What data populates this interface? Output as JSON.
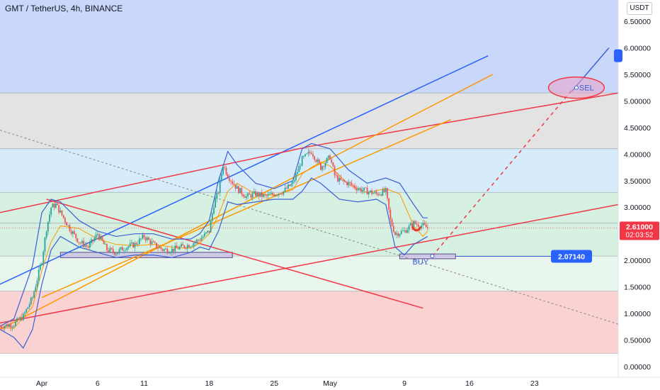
{
  "header": {
    "title": "GMT / TetherUS, 4h, BINANCE",
    "currency_label": "USDT"
  },
  "price_axis": {
    "ticks": [
      "6.50000",
      "6.00000",
      "5.50000",
      "5.00000",
      "4.50000",
      "4.00000",
      "3.50000",
      "3.00000",
      "2.50000",
      "2.00000",
      "1.50000",
      "1.00000",
      "0.50000",
      "0.00000"
    ],
    "values": [
      6.5,
      6.0,
      5.5,
      5.0,
      4.5,
      4.0,
      3.5,
      3.0,
      2.5,
      2.0,
      1.5,
      1.0,
      0.5,
      0.0
    ],
    "current_price_label": "2.61000",
    "countdown_label": "02:03:52",
    "current_price": 2.61,
    "target_price_label": "2.07140",
    "target_price": 2.0714
  },
  "time_axis": {
    "labels": [
      "Apr",
      "6",
      "11",
      "18",
      "25",
      "May",
      "9",
      "16",
      "23"
    ],
    "days": [
      0,
      6,
      11,
      18,
      25,
      31,
      39,
      46,
      53
    ]
  },
  "annotations": {
    "sell_label": "SEL",
    "buy_label": "BUY"
  },
  "colors": {
    "blue_line": "#2962ff",
    "red_line": "#f23645",
    "orange_line": "#ff9800",
    "band_line": "#3a5fd9",
    "candle": "#26a69a",
    "zone_blue": "#c9d7fb",
    "zone_gray": "#e3e3e3",
    "zone_lightblue": "#d6ecfa",
    "zone_green": "#d6f0e1",
    "zone_lightgreen": "#e9f6ed",
    "zone_red": "#fbd2d2",
    "price_tag": "#f23645",
    "target_tag": "#2962ff"
  },
  "chart_data": {
    "type": "candlestick",
    "title": "GMT / TetherUS, 4h, BINANCE",
    "y_unit": "USDT",
    "ylim": [
      -0.2,
      6.9
    ],
    "xlim_days": [
      -4.5,
      62
    ],
    "zones": [
      {
        "from": 5.15,
        "to": 6.9,
        "color": "zone_blue"
      },
      {
        "from": 4.1,
        "to": 5.15,
        "color": "zone_gray"
      },
      {
        "from": 3.28,
        "to": 4.1,
        "color": "zone_lightblue"
      },
      {
        "from": 2.08,
        "to": 3.28,
        "color": "zone_green"
      },
      {
        "from": 1.42,
        "to": 2.08,
        "color": "zone_lightgreen"
      },
      {
        "from": 0.25,
        "to": 1.42,
        "color": "zone_red"
      }
    ],
    "horizontal_levels": [
      5.15,
      4.1,
      3.28,
      2.7,
      2.08,
      1.42,
      0.25
    ],
    "price_path": [
      [
        -4.5,
        0.76
      ],
      [
        -3,
        0.8
      ],
      [
        -2,
        0.95
      ],
      [
        -1,
        1.3
      ],
      [
        0,
        2.0
      ],
      [
        0.5,
        2.6
      ],
      [
        1,
        3.0
      ],
      [
        1.5,
        3.05
      ],
      [
        2,
        2.9
      ],
      [
        3,
        2.6
      ],
      [
        4,
        2.35
      ],
      [
        5,
        2.25
      ],
      [
        6,
        2.5
      ],
      [
        7,
        2.2
      ],
      [
        8,
        2.15
      ],
      [
        9,
        2.25
      ],
      [
        10,
        2.3
      ],
      [
        11,
        2.45
      ],
      [
        12,
        2.3
      ],
      [
        13,
        2.2
      ],
      [
        14,
        2.2
      ],
      [
        15,
        2.25
      ],
      [
        16,
        2.3
      ],
      [
        17,
        2.4
      ],
      [
        18,
        2.55
      ],
      [
        18.5,
        3.05
      ],
      [
        19,
        3.3
      ],
      [
        19.5,
        3.8
      ],
      [
        20,
        3.6
      ],
      [
        21,
        3.35
      ],
      [
        22,
        3.2
      ],
      [
        23,
        3.25
      ],
      [
        24,
        3.2
      ],
      [
        25,
        3.25
      ],
      [
        26,
        3.3
      ],
      [
        27,
        3.45
      ],
      [
        28,
        3.9
      ],
      [
        29,
        4.05
      ],
      [
        30,
        3.75
      ],
      [
        31,
        3.95
      ],
      [
        31.5,
        3.6
      ],
      [
        32,
        3.5
      ],
      [
        33,
        3.45
      ],
      [
        34,
        3.35
      ],
      [
        35,
        3.3
      ],
      [
        36,
        3.25
      ],
      [
        37,
        3.3
      ],
      [
        37.5,
        2.75
      ],
      [
        38,
        2.5
      ],
      [
        39,
        2.55
      ],
      [
        40,
        2.7
      ],
      [
        41,
        2.65
      ],
      [
        41.5,
        2.61
      ]
    ],
    "bollinger_upper": [
      [
        -4.5,
        0.76
      ],
      [
        -3,
        0.9
      ],
      [
        -1,
        1.9
      ],
      [
        0,
        2.9
      ],
      [
        1,
        3.15
      ],
      [
        2,
        3.1
      ],
      [
        4,
        2.75
      ],
      [
        6,
        2.55
      ],
      [
        8,
        2.45
      ],
      [
        10,
        2.5
      ],
      [
        12,
        2.5
      ],
      [
        14,
        2.4
      ],
      [
        16,
        2.4
      ],
      [
        17,
        2.5
      ],
      [
        18,
        2.75
      ],
      [
        19,
        3.5
      ],
      [
        20,
        4.05
      ],
      [
        21,
        3.8
      ],
      [
        23,
        3.45
      ],
      [
        25,
        3.35
      ],
      [
        27,
        3.5
      ],
      [
        28,
        4.1
      ],
      [
        29,
        4.2
      ],
      [
        30,
        4.15
      ],
      [
        31,
        4.1
      ],
      [
        32,
        3.9
      ],
      [
        33,
        3.7
      ],
      [
        35,
        3.45
      ],
      [
        37,
        3.55
      ],
      [
        38.5,
        3.45
      ],
      [
        40,
        3.05
      ],
      [
        41,
        2.8
      ],
      [
        41.5,
        2.8
      ]
    ],
    "bollinger_lower": [
      [
        -4.5,
        0.7
      ],
      [
        -3,
        0.55
      ],
      [
        -2,
        0.35
      ],
      [
        -1,
        0.7
      ],
      [
        0,
        1.55
      ],
      [
        1,
        2.2
      ],
      [
        2,
        2.45
      ],
      [
        4,
        2.25
      ],
      [
        6,
        2.15
      ],
      [
        8,
        2.05
      ],
      [
        10,
        2.1
      ],
      [
        12,
        2.1
      ],
      [
        14,
        2.05
      ],
      [
        16,
        2.15
      ],
      [
        17,
        2.25
      ],
      [
        18,
        2.2
      ],
      [
        19,
        2.55
      ],
      [
        20,
        3.1
      ],
      [
        21,
        3.05
      ],
      [
        23,
        3.1
      ],
      [
        25,
        3.15
      ],
      [
        27,
        3.15
      ],
      [
        28,
        3.3
      ],
      [
        29,
        3.55
      ],
      [
        30,
        3.45
      ],
      [
        31,
        3.3
      ],
      [
        32,
        3.15
      ],
      [
        34,
        3.1
      ],
      [
        36,
        3.15
      ],
      [
        37,
        3.05
      ],
      [
        38,
        2.25
      ],
      [
        39,
        2.1
      ],
      [
        40,
        2.3
      ],
      [
        41,
        2.4
      ],
      [
        41.5,
        2.45
      ]
    ],
    "trendlines": [
      {
        "color": "blue_line",
        "from": [
          -4.5,
          1.55
        ],
        "to": [
          48,
          5.85
        ]
      },
      {
        "color": "red_line",
        "from": [
          -4.5,
          2.9
        ],
        "to": [
          29,
          4.15
        ]
      },
      {
        "color": "red_line",
        "from": [
          29,
          4.15
        ],
        "to": [
          62,
          5.15
        ]
      },
      {
        "color": "red_line",
        "from": [
          -4.5,
          0.82
        ],
        "to": [
          62,
          3.05
        ]
      },
      {
        "color": "red_line",
        "from": [
          0.5,
          3.15
        ],
        "to": [
          41,
          1.1
        ]
      },
      {
        "color": "orange_line",
        "from": [
          -4.5,
          0.7
        ],
        "to": [
          48.5,
          5.5
        ]
      },
      {
        "color": "orange_line",
        "from": [
          0,
          1.3
        ],
        "to": [
          44,
          4.65
        ]
      },
      {
        "color": "band_line",
        "from": [
          57,
          5.18
        ],
        "to": [
          61,
          6.0
        ]
      }
    ],
    "projection": {
      "from": [
        42,
        2.08
      ],
      "to": [
        57,
        5.2
      ],
      "style": "dashed"
    },
    "gray_dashed_line": {
      "from": [
        -4.5,
        4.45
      ],
      "to": [
        62,
        0.8
      ]
    },
    "support_boxes": [
      {
        "days": [
          2,
          20.5
        ],
        "low": 2.05,
        "high": 2.15
      },
      {
        "days": [
          38.5,
          44.5
        ],
        "low": 2.03,
        "high": 2.12
      }
    ],
    "sell_ellipse": {
      "center": [
        57.5,
        5.25
      ],
      "price_halfheight": 0.2,
      "day_halfwidth": 3
    }
  }
}
